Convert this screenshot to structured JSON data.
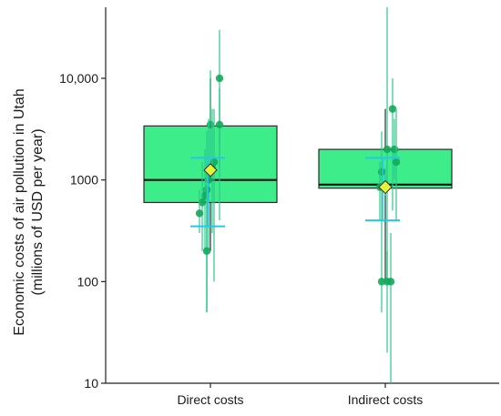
{
  "chart_data": {
    "type": "box",
    "ylabel_lines": [
      "Economic costs of air pollution in Utah",
      "(millions of USD per year)"
    ],
    "xlabel": "",
    "y_scale": "log",
    "ylim": [
      10,
      50000
    ],
    "y_ticks": [
      10,
      100,
      1000,
      10000
    ],
    "y_tick_labels": [
      "10",
      "100",
      "1000",
      "10,000"
    ],
    "categories": [
      "Direct costs",
      "Indirect costs"
    ],
    "boxes": [
      {
        "category": "Direct costs",
        "q1": 600,
        "median": 1000,
        "q3": 3400,
        "whisker_low": 200,
        "whisker_high": 10000,
        "mean": 1250,
        "ci_low": 350,
        "ci_high": 1650,
        "points": [
          {
            "value": 10000,
            "low": 1300,
            "high": 30000
          },
          {
            "value": 3500,
            "low": 1000,
            "high": 12000
          },
          {
            "value": 3500,
            "low": 400,
            "high": 8000
          },
          {
            "value": 1500,
            "low": 100,
            "high": 5000
          },
          {
            "value": 1300,
            "low": 300,
            "high": 5000
          },
          {
            "value": 1000,
            "low": 200,
            "high": 4000
          },
          {
            "value": 800,
            "low": 50,
            "high": 3000
          },
          {
            "value": 700,
            "low": 200,
            "high": 2000
          },
          {
            "value": 600,
            "low": 200,
            "high": 1500
          },
          {
            "value": 470,
            "low": 300,
            "high": 800
          },
          {
            "value": 200,
            "low": 50,
            "high": 1500
          }
        ]
      },
      {
        "category": "Indirect costs",
        "q1": 830,
        "median": 900,
        "q3": 2000,
        "whisker_low": 100,
        "whisker_high": 5000,
        "mean": 850,
        "ci_low": 400,
        "ci_high": 1650,
        "points": [
          {
            "value": 5000,
            "low": 500,
            "high": 10000
          },
          {
            "value": 2000,
            "low": 100,
            "high": 50000
          },
          {
            "value": 2000,
            "low": 1000,
            "high": 4000
          },
          {
            "value": 1500,
            "low": 400,
            "high": 5000
          },
          {
            "value": 1200,
            "low": 200,
            "high": 3000
          },
          {
            "value": 900,
            "low": 700,
            "high": 1300
          },
          {
            "value": 850,
            "low": 400,
            "high": 1500
          },
          {
            "value": 100,
            "low": 20,
            "high": 200
          },
          {
            "value": 100,
            "low": 50,
            "high": 200
          },
          {
            "value": 100,
            "low": 10,
            "high": 300
          }
        ]
      }
    ],
    "colors": {
      "box_fill": "#3ded8a",
      "box_stroke": "#2b2b2b",
      "median_line": "#111111",
      "point": "#14a85a",
      "point_range": "#2cc98a",
      "mean_marker": "#e6f23a",
      "ci_bar": "#29c6e8"
    }
  }
}
